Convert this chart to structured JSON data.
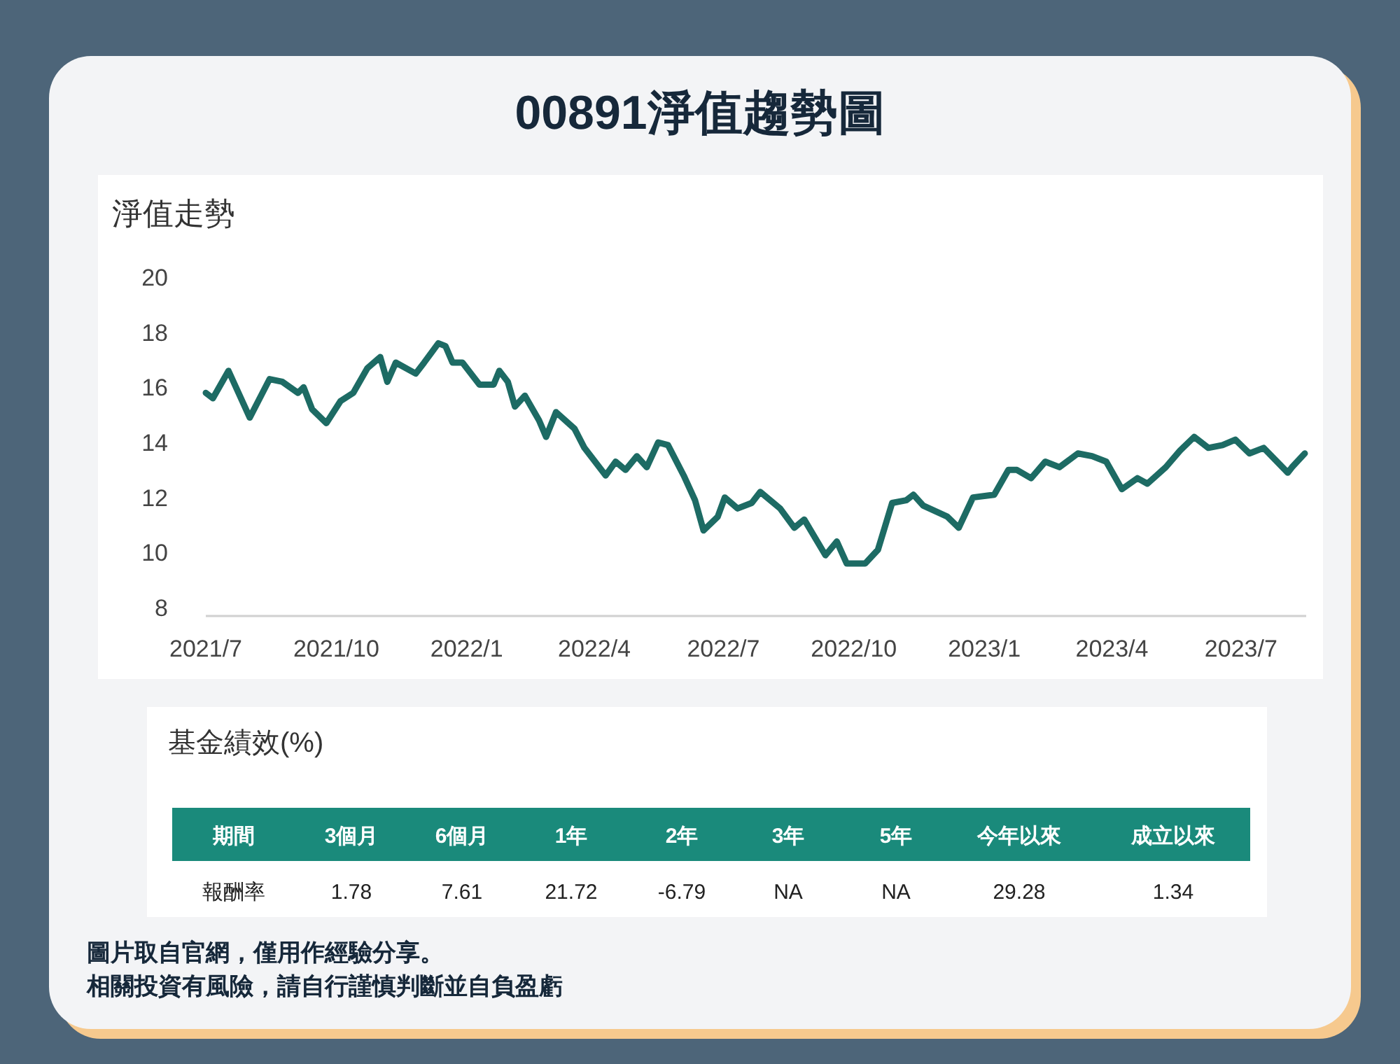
{
  "chart_data": [
    {
      "type": "line",
      "title": "00891淨值趨勢圖",
      "subtitle": "淨值走勢",
      "x": [
        "2021-07-01",
        "2021-07-06",
        "2021-07-17",
        "2021-08-01",
        "2021-08-15",
        "2021-08-24",
        "2021-09-04",
        "2021-09-08",
        "2021-09-14",
        "2021-09-24",
        "2021-10-04",
        "2021-10-13",
        "2021-10-23",
        "2021-11-01",
        "2021-11-06",
        "2021-11-12",
        "2021-11-26",
        "2021-12-02",
        "2021-12-12",
        "2021-12-17",
        "2021-12-22",
        "2021-12-29",
        "2022-01-10",
        "2022-01-20",
        "2022-01-24",
        "2022-01-30",
        "2022-02-04",
        "2022-02-11",
        "2022-02-21",
        "2022-02-26",
        "2022-03-05",
        "2022-03-18",
        "2022-03-25",
        "2022-04-09",
        "2022-04-16",
        "2022-04-23",
        "2022-05-01",
        "2022-05-08",
        "2022-05-16",
        "2022-05-23",
        "2022-06-03",
        "2022-06-11",
        "2022-06-17",
        "2022-06-27",
        "2022-07-02",
        "2022-07-11",
        "2022-07-21",
        "2022-07-27",
        "2022-08-10",
        "2022-08-20",
        "2022-08-27",
        "2022-09-11",
        "2022-09-19",
        "2022-09-26",
        "2022-10-09",
        "2022-10-18",
        "2022-10-28",
        "2022-11-07",
        "2022-11-12",
        "2022-11-19",
        "2022-12-06",
        "2022-12-14",
        "2022-12-24",
        "2023-01-08",
        "2023-01-18",
        "2023-01-24",
        "2023-02-03",
        "2023-02-13",
        "2023-02-23",
        "2023-03-08",
        "2023-03-18",
        "2023-03-28",
        "2023-04-08",
        "2023-04-19",
        "2023-04-26",
        "2023-05-09",
        "2023-05-19",
        "2023-05-29",
        "2023-06-08",
        "2023-06-18",
        "2023-06-27",
        "2023-07-07",
        "2023-07-17",
        "2023-08-03",
        "2023-08-06",
        "2023-08-15"
      ],
      "series": [
        {
          "color": "#1d6b64",
          "values": [
            15.8,
            15.6,
            16.6,
            14.9,
            16.3,
            16.2,
            15.8,
            16.0,
            15.2,
            14.7,
            15.5,
            15.8,
            16.7,
            17.1,
            16.2,
            16.9,
            16.5,
            16.9,
            17.6,
            17.5,
            16.9,
            16.9,
            16.1,
            16.1,
            16.6,
            16.2,
            15.3,
            15.7,
            14.8,
            14.2,
            15.1,
            14.5,
            13.8,
            12.8,
            13.3,
            13.0,
            13.5,
            13.1,
            14.0,
            13.9,
            12.8,
            11.9,
            10.8,
            11.3,
            12.0,
            11.6,
            11.8,
            12.2,
            11.6,
            10.9,
            11.2,
            9.9,
            10.4,
            9.6,
            9.6,
            10.1,
            11.8,
            11.9,
            12.1,
            11.7,
            11.3,
            10.9,
            12.0,
            12.1,
            13.0,
            13.0,
            12.7,
            13.3,
            13.1,
            13.6,
            13.5,
            13.3,
            12.3,
            12.7,
            12.5,
            13.1,
            13.7,
            14.2,
            13.8,
            13.9,
            14.1,
            13.6,
            13.8,
            12.9,
            13.1,
            13.6
          ]
        }
      ],
      "xlim": [
        "2021-07-01",
        "2023-08-16"
      ],
      "xticks": [
        {
          "value": "2021-07-01",
          "label": "2021/7"
        },
        {
          "value": "2021-10-01",
          "label": "2021/10"
        },
        {
          "value": "2022-01-01",
          "label": "2022/1"
        },
        {
          "value": "2022-04-01",
          "label": "2022/4"
        },
        {
          "value": "2022-07-01",
          "label": "2022/7"
        },
        {
          "value": "2022-10-01",
          "label": "2022/10"
        },
        {
          "value": "2023-01-01",
          "label": "2023/1"
        },
        {
          "value": "2023-04-01",
          "label": "2023/4"
        },
        {
          "value": "2023-07-01",
          "label": "2023/7"
        }
      ],
      "ylim": [
        8,
        20
      ],
      "yticks": [
        8,
        10,
        12,
        14,
        16,
        18,
        20
      ],
      "annotations": [
        "圖片取自官網，僅用作經驗分享。",
        "相關投資有風險，請自行謹慎判斷並自負盈虧"
      ]
    },
    {
      "type": "other",
      "title": "基金績效(%)",
      "categories": [
        "3個月",
        "6個月",
        "1年",
        "2年",
        "3年",
        "5年",
        "今年以來",
        "成立以來"
      ],
      "value_labels": [
        "1.78",
        "7.61",
        "21.72",
        "-6.79",
        "NA",
        "NA",
        "29.28",
        "1.34"
      ],
      "annotations": [
        "期間",
        "報酬率"
      ]
    }
  ]
}
